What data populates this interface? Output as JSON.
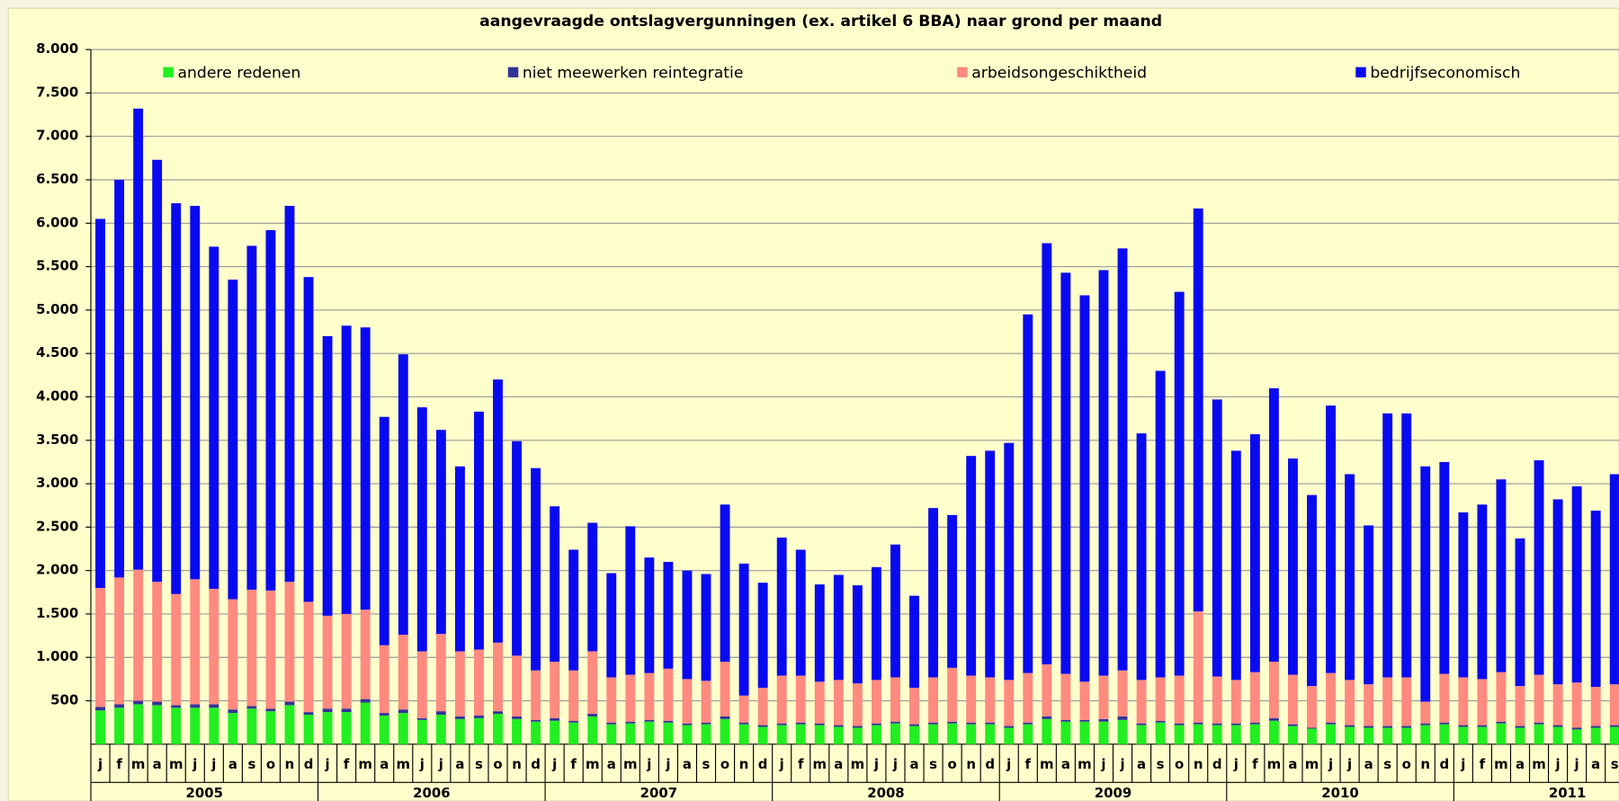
{
  "chart_data": {
    "type": "stacked-bar",
    "title": "aangevraagde ontslagvergunningen (ex. artikel 6 BBA) naar grond per maand",
    "categories": [
      "j",
      "f",
      "m",
      "a",
      "m",
      "j",
      "j",
      "a",
      "s",
      "o",
      "n",
      "d",
      "j",
      "f",
      "m",
      "a",
      "m",
      "j",
      "j",
      "a",
      "s",
      "o",
      "n",
      "d",
      "j",
      "f",
      "m",
      "a",
      "m",
      "j",
      "j",
      "a",
      "s",
      "o",
      "n",
      "d",
      "j",
      "f",
      "m",
      "a",
      "m",
      "j",
      "j",
      "a",
      "s",
      "o",
      "n",
      "d",
      "j",
      "f",
      "m",
      "a",
      "m",
      "j",
      "j",
      "a",
      "s",
      "o",
      "n",
      "d",
      "j",
      "f",
      "m",
      "a",
      "m",
      "j",
      "j",
      "a",
      "s",
      "o",
      "n",
      "d",
      "j",
      "f",
      "m",
      "a",
      "m",
      "j",
      "j",
      "a",
      "s"
    ],
    "years": [
      "2005",
      "2006",
      "2007",
      "2008",
      "2009",
      "2010",
      "2011"
    ],
    "ylim": [
      0,
      8000
    ],
    "yticks": [
      {
        "value": 500,
        "label": "500"
      },
      {
        "value": 1000,
        "label": "1.000"
      },
      {
        "value": 1500,
        "label": "1.500"
      },
      {
        "value": 2000,
        "label": "2.000"
      },
      {
        "value": 2500,
        "label": "2.500"
      },
      {
        "value": 3000,
        "label": "3.000"
      },
      {
        "value": 3500,
        "label": "3.500"
      },
      {
        "value": 4000,
        "label": "4.000"
      },
      {
        "value": 4500,
        "label": "4.500"
      },
      {
        "value": 5000,
        "label": "5.000"
      },
      {
        "value": 5500,
        "label": "5.500"
      },
      {
        "value": 6000,
        "label": "6.000"
      },
      {
        "value": 6500,
        "label": "6.500"
      },
      {
        "value": 7000,
        "label": "7.000"
      },
      {
        "value": 7500,
        "label": "7.500"
      },
      {
        "value": 8000,
        "label": "8.000"
      }
    ],
    "grid": true,
    "series": [
      {
        "name": "andere redenen",
        "color": "#22ee22",
        "values": [
          390,
          420,
          460,
          450,
          420,
          420,
          420,
          360,
          410,
          380,
          450,
          340,
          370,
          370,
          480,
          330,
          360,
          280,
          340,
          290,
          300,
          350,
          290,
          260,
          270,
          250,
          320,
          230,
          240,
          260,
          250,
          220,
          230,
          290,
          230,
          200,
          220,
          230,
          220,
          200,
          190,
          220,
          240,
          210,
          230,
          240,
          230,
          230,
          190,
          230,
          290,
          260,
          260,
          260,
          280,
          220,
          250,
          220,
          230,
          220,
          220,
          230,
          270,
          210,
          180,
          230,
          200,
          190,
          190,
          190,
          220,
          230,
          200,
          200,
          240,
          190,
          230,
          200,
          170,
          190,
          200
        ]
      },
      {
        "name": "niet meewerken reintegratie",
        "color": "#333399",
        "values": [
          40,
          40,
          40,
          40,
          30,
          40,
          40,
          40,
          30,
          30,
          40,
          30,
          40,
          40,
          40,
          30,
          40,
          20,
          40,
          30,
          30,
          30,
          30,
          20,
          30,
          20,
          30,
          20,
          20,
          20,
          20,
          20,
          20,
          30,
          20,
          20,
          20,
          20,
          20,
          20,
          20,
          20,
          20,
          20,
          20,
          20,
          20,
          20,
          20,
          20,
          30,
          20,
          20,
          30,
          40,
          20,
          20,
          20,
          20,
          20,
          20,
          20,
          30,
          20,
          10,
          20,
          20,
          20,
          20,
          20,
          20,
          20,
          20,
          20,
          20,
          20,
          20,
          20,
          20,
          20,
          20
        ]
      },
      {
        "name": "arbeidsongeschiktheid",
        "color": "#ff8a80",
        "values": [
          1370,
          1460,
          1510,
          1380,
          1280,
          1440,
          1330,
          1270,
          1340,
          1360,
          1380,
          1270,
          1070,
          1090,
          1030,
          780,
          860,
          770,
          890,
          750,
          760,
          790,
          700,
          570,
          650,
          580,
          720,
          520,
          540,
          540,
          600,
          510,
          480,
          630,
          310,
          430,
          550,
          540,
          480,
          520,
          490,
          500,
          510,
          420,
          520,
          620,
          540,
          520,
          530,
          570,
          600,
          530,
          440,
          500,
          530,
          500,
          500,
          550,
          1280,
          540,
          500,
          580,
          650,
          570,
          480,
          570,
          520,
          480,
          560,
          560,
          250,
          560,
          550,
          530,
          570,
          460,
          550,
          470,
          520,
          450,
          470
        ]
      },
      {
        "name": "bedrijfseconomisch",
        "color": "#0a0af0",
        "values": [
          4250,
          4580,
          5310,
          4860,
          4500,
          4300,
          3940,
          3680,
          3960,
          4150,
          4330,
          3740,
          3220,
          3320,
          3250,
          2630,
          3230,
          2810,
          2350,
          2130,
          2740,
          3030,
          2470,
          2330,
          1790,
          1390,
          1480,
          1200,
          1710,
          1330,
          1230,
          1250,
          1230,
          1810,
          1520,
          1210,
          1590,
          1450,
          1120,
          1210,
          1130,
          1300,
          1530,
          1060,
          1950,
          1760,
          2530,
          2610,
          2730,
          4130,
          4850,
          4620,
          4450,
          4670,
          4860,
          2840,
          3530,
          4420,
          4640,
          3190,
          2640,
          2740,
          3150,
          2490,
          2200,
          3080,
          2370,
          1830,
          3040,
          3040,
          2710,
          2440,
          1900,
          2010,
          2220,
          1700,
          2470,
          2130,
          2260,
          2030,
          2420
        ]
      }
    ]
  }
}
